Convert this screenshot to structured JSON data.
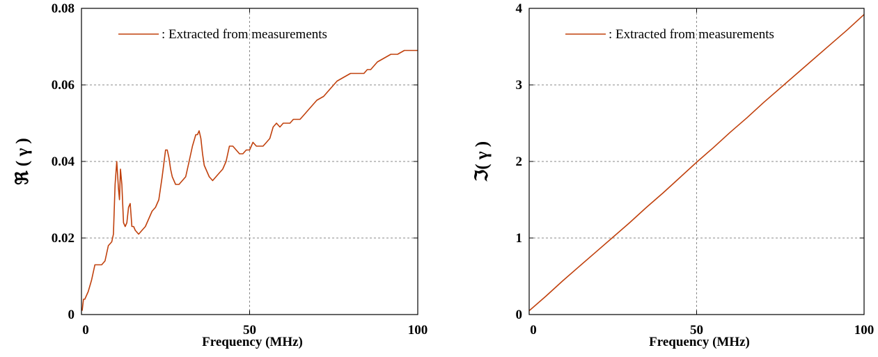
{
  "chart_data": [
    {
      "type": "line",
      "xlabel": "Frequency (MHz)",
      "ylabel": "ℜ ( γ )",
      "xlim": [
        0,
        100
      ],
      "ylim": [
        0,
        0.08
      ],
      "x_ticks": [
        0,
        50,
        100
      ],
      "y_ticks": [
        0,
        0.02,
        0.04,
        0.06,
        0.08
      ],
      "x_tick_labels": [
        "0",
        "50",
        "100"
      ],
      "y_tick_labels": [
        "0",
        "0.02",
        "0.04",
        "0.06",
        "0.08"
      ],
      "grid": true,
      "legend_position": "top-center",
      "series": [
        {
          "name": ": Extracted from measurements",
          "color": "#c0400c",
          "x": [
            0.2,
            0.6,
            1,
            2,
            3,
            4,
            5,
            6,
            7,
            8,
            9,
            9.5,
            10,
            10.5,
            11,
            11.3,
            11.6,
            12,
            12.5,
            13,
            13.5,
            14,
            14.5,
            15,
            15.5,
            16,
            17,
            18,
            19,
            20,
            21,
            22,
            23,
            24,
            25,
            25.5,
            26,
            26.5,
            27,
            28,
            29,
            30,
            31,
            32,
            33,
            34,
            34.5,
            35,
            35.5,
            36,
            36.5,
            37,
            38,
            39,
            40,
            41,
            42,
            43,
            44,
            45,
            46,
            47,
            48,
            49,
            50,
            51,
            52,
            53,
            54,
            55,
            56,
            57,
            58,
            59,
            60,
            61,
            62,
            63,
            64,
            65,
            66,
            67,
            68,
            70,
            72,
            74,
            76,
            78,
            80,
            82,
            84,
            85,
            86,
            88,
            90,
            92,
            94,
            96,
            98,
            99,
            100
          ],
          "y": [
            0.001,
            0.004,
            0.004,
            0.006,
            0.009,
            0.013,
            0.013,
            0.013,
            0.014,
            0.018,
            0.019,
            0.021,
            0.034,
            0.04,
            0.033,
            0.03,
            0.038,
            0.034,
            0.024,
            0.023,
            0.024,
            0.028,
            0.029,
            0.023,
            0.023,
            0.022,
            0.021,
            0.022,
            0.023,
            0.025,
            0.027,
            0.028,
            0.03,
            0.036,
            0.043,
            0.043,
            0.041,
            0.038,
            0.036,
            0.034,
            0.034,
            0.035,
            0.036,
            0.04,
            0.044,
            0.047,
            0.047,
            0.048,
            0.046,
            0.042,
            0.039,
            0.038,
            0.036,
            0.035,
            0.036,
            0.037,
            0.038,
            0.04,
            0.044,
            0.044,
            0.043,
            0.042,
            0.042,
            0.043,
            0.043,
            0.045,
            0.044,
            0.044,
            0.044,
            0.045,
            0.046,
            0.049,
            0.05,
            0.049,
            0.05,
            0.05,
            0.05,
            0.051,
            0.051,
            0.051,
            0.052,
            0.053,
            0.054,
            0.056,
            0.057,
            0.059,
            0.061,
            0.062,
            0.063,
            0.063,
            0.063,
            0.064,
            0.064,
            0.066,
            0.067,
            0.068,
            0.068,
            0.069,
            0.069,
            0.069,
            0.069
          ]
        }
      ]
    },
    {
      "type": "line",
      "xlabel": "Frequency (MHz)",
      "ylabel": "ℑ( γ )",
      "xlim": [
        0,
        100
      ],
      "ylim": [
        0,
        4
      ],
      "x_ticks": [
        0,
        50,
        100
      ],
      "y_ticks": [
        0,
        1,
        2,
        3,
        4
      ],
      "x_tick_labels": [
        "0",
        "50",
        "100"
      ],
      "y_tick_labels": [
        "0",
        "1",
        "2",
        "3",
        "4"
      ],
      "grid": true,
      "legend_position": "top-center",
      "series": [
        {
          "name": ": Extracted from measurements",
          "color": "#c0400c",
          "x": [
            0,
            5,
            10,
            15,
            20,
            25,
            30,
            35,
            40,
            45,
            50,
            55,
            60,
            65,
            70,
            75,
            80,
            85,
            90,
            95,
            100
          ],
          "y": [
            0.05,
            0.24,
            0.44,
            0.63,
            0.82,
            1.01,
            1.2,
            1.4,
            1.59,
            1.79,
            1.99,
            2.18,
            2.38,
            2.57,
            2.77,
            2.96,
            3.15,
            3.34,
            3.53,
            3.72,
            3.92
          ]
        }
      ]
    }
  ]
}
